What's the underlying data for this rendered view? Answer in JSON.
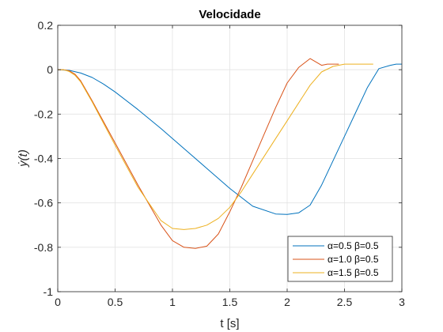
{
  "chart_data": {
    "type": "line",
    "title": "Velocidade",
    "xlabel": "t [s]",
    "ylabel": "ẏ(t)",
    "xlim": [
      0,
      3
    ],
    "ylim": [
      -1,
      0.2
    ],
    "xticks": [
      0,
      0.5,
      1,
      1.5,
      2,
      2.5,
      3
    ],
    "xtick_labels": [
      "0",
      "0.5",
      "1",
      "1.5",
      "2",
      "2.5",
      "3"
    ],
    "yticks": [
      0.2,
      0,
      -0.2,
      -0.4,
      -0.6,
      -0.8,
      -1
    ],
    "ytick_labels": [
      "0.2",
      "0",
      "-0.2",
      "-0.4",
      "-0.6",
      "-0.8",
      "-1"
    ],
    "grid": true,
    "legend_position": "bottom-right",
    "series": [
      {
        "name": "α=0.5  β=0.5",
        "color": "#0072BD",
        "x": [
          0,
          0.1,
          0.2,
          0.3,
          0.4,
          0.5,
          0.7,
          0.9,
          1.1,
          1.3,
          1.5,
          1.7,
          1.9,
          2.0,
          2.1,
          2.2,
          2.3,
          2.4,
          2.5,
          2.6,
          2.7,
          2.8,
          2.9,
          2.95,
          3.0
        ],
        "y": [
          0,
          -0.003,
          -0.015,
          -0.035,
          -0.065,
          -0.1,
          -0.18,
          -0.265,
          -0.355,
          -0.445,
          -0.535,
          -0.615,
          -0.65,
          -0.652,
          -0.645,
          -0.61,
          -0.52,
          -0.41,
          -0.3,
          -0.19,
          -0.08,
          0.005,
          0.02,
          0.025,
          0.025
        ]
      },
      {
        "name": "α=1.0  β=0.5",
        "color": "#D95319",
        "x": [
          0,
          0.05,
          0.1,
          0.15,
          0.2,
          0.3,
          0.5,
          0.7,
          0.9,
          1.0,
          1.1,
          1.2,
          1.3,
          1.4,
          1.5,
          1.6,
          1.7,
          1.8,
          1.9,
          2.0,
          2.1,
          2.2,
          2.3,
          2.35,
          2.4,
          2.45
        ],
        "y": [
          0,
          0,
          -0.005,
          -0.02,
          -0.05,
          -0.14,
          -0.33,
          -0.52,
          -0.7,
          -0.77,
          -0.8,
          -0.805,
          -0.795,
          -0.74,
          -0.64,
          -0.53,
          -0.41,
          -0.29,
          -0.17,
          -0.06,
          0.01,
          0.05,
          0.02,
          0.025,
          0.025,
          0.025
        ]
      },
      {
        "name": "α=1.5  β=0.5",
        "color": "#EDB120",
        "x": [
          0,
          0.05,
          0.1,
          0.15,
          0.2,
          0.3,
          0.5,
          0.7,
          0.9,
          1.0,
          1.1,
          1.2,
          1.3,
          1.4,
          1.5,
          1.6,
          1.7,
          1.8,
          1.9,
          2.0,
          2.1,
          2.2,
          2.3,
          2.4,
          2.5,
          2.6,
          2.7,
          2.75
        ],
        "y": [
          0,
          0,
          -0.008,
          -0.025,
          -0.055,
          -0.145,
          -0.34,
          -0.53,
          -0.68,
          -0.715,
          -0.72,
          -0.715,
          -0.7,
          -0.67,
          -0.62,
          -0.55,
          -0.47,
          -0.39,
          -0.31,
          -0.23,
          -0.15,
          -0.07,
          -0.01,
          0.015,
          0.025,
          0.025,
          0.025,
          0.025
        ]
      }
    ]
  }
}
